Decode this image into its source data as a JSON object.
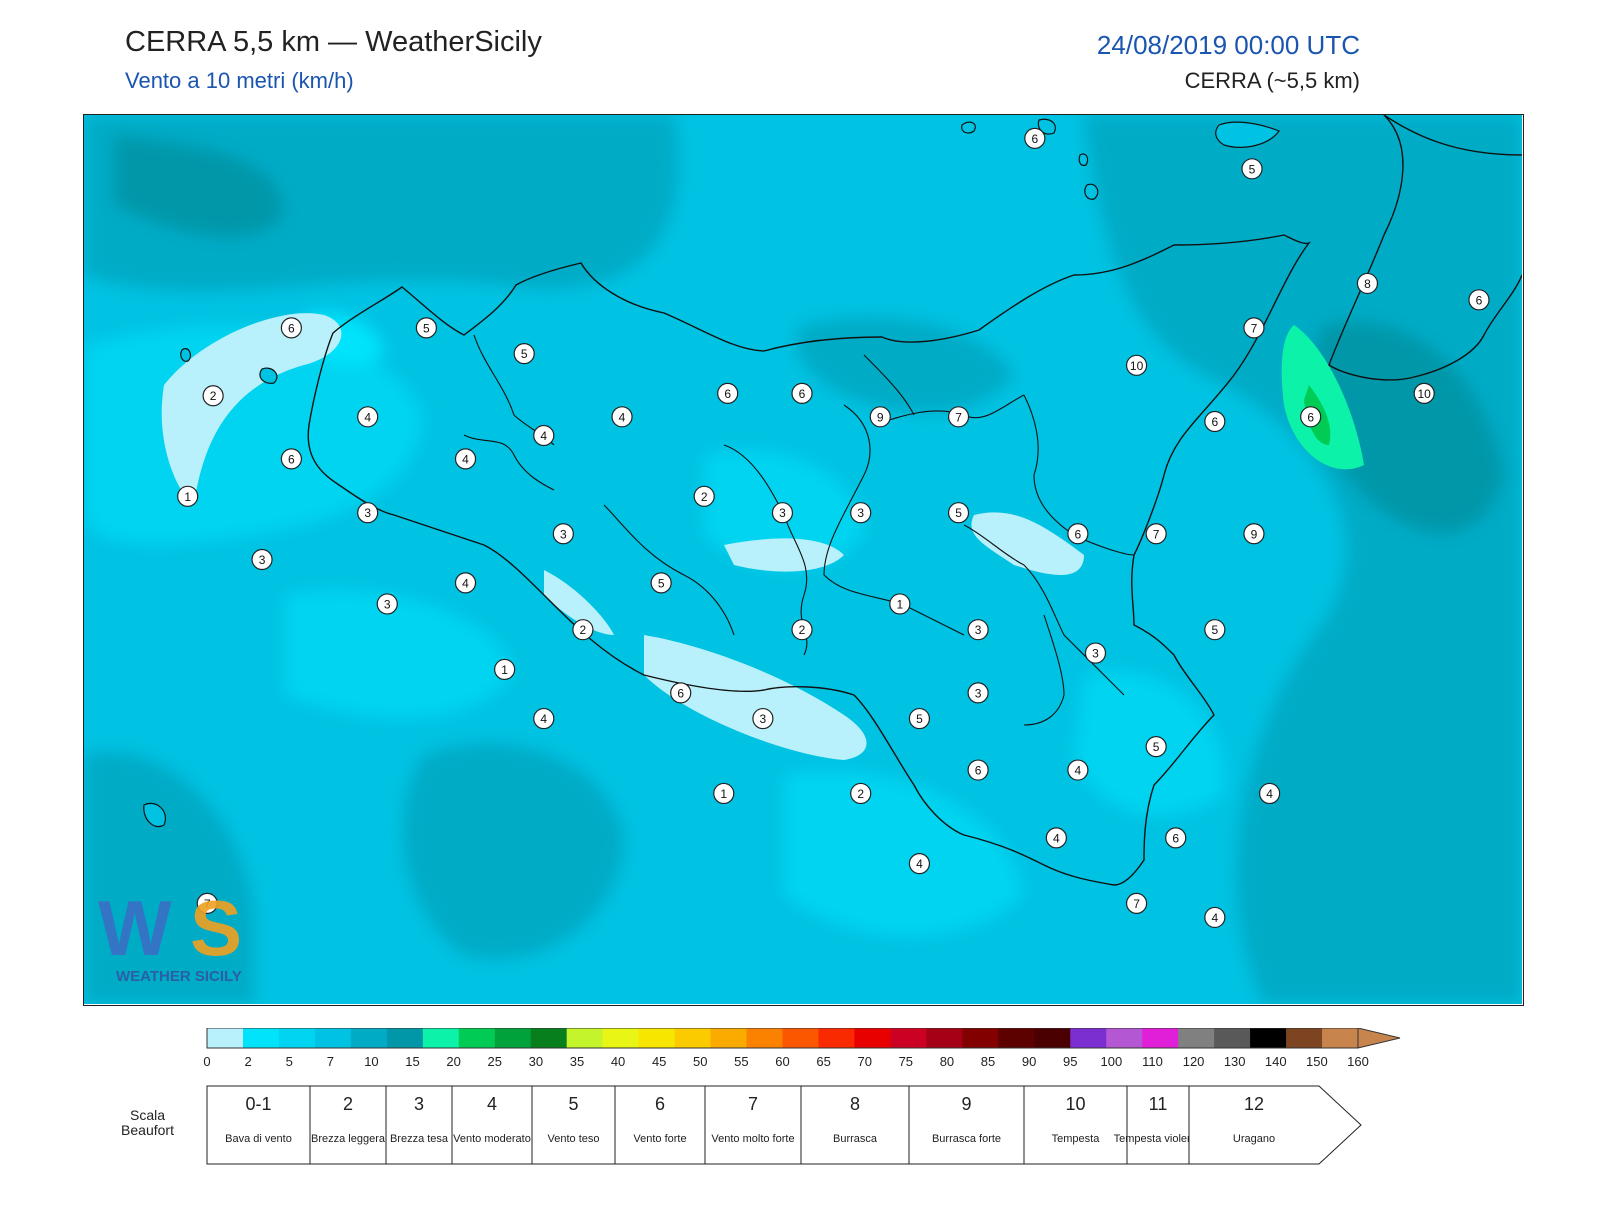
{
  "header": {
    "title": "CERRA 5,5 km — WeatherSicily",
    "subtitle": "Vento a 10 metri (km/h)",
    "datetime": "24/08/2019 00:00 UTC",
    "model": "CERRA (~5,5 km)"
  },
  "logo": {
    "text": "WEATHER SICILY",
    "icon": "ws-logo-icon"
  },
  "colorbar": {
    "ticks": [
      "0",
      "2",
      "5",
      "7",
      "10",
      "15",
      "20",
      "25",
      "30",
      "35",
      "40",
      "45",
      "50",
      "55",
      "60",
      "65",
      "70",
      "75",
      "80",
      "85",
      "90",
      "95",
      "100",
      "110",
      "120",
      "130",
      "140",
      "150",
      "160"
    ],
    "colors": [
      "#b8f0fb",
      "#00e3fb",
      "#00d4f0",
      "#00c2e2",
      "#00abc6",
      "#0097a9",
      "#0cf2a8",
      "#00cc55",
      "#00a23c",
      "#087f1d",
      "#c4f52c",
      "#e9f514",
      "#f7e600",
      "#fbcb00",
      "#fbaa00",
      "#fb8100",
      "#fb5700",
      "#fa2a00",
      "#e80000",
      "#cc0022",
      "#a60016",
      "#820000",
      "#5c0000",
      "#4a0000",
      "#7b2fd0",
      "#b457d2",
      "#e21fd8",
      "#808080",
      "#595959",
      "#000000",
      "#7c4421",
      "#c7844c"
    ]
  },
  "beaufort": {
    "label": "Scala Beaufort",
    "cells": [
      {
        "num": "0-1",
        "desc": "Bava di vento"
      },
      {
        "num": "2",
        "desc": "Brezza leggera"
      },
      {
        "num": "3",
        "desc": "Brezza tesa"
      },
      {
        "num": "4",
        "desc": "Vento moderato"
      },
      {
        "num": "5",
        "desc": "Vento teso"
      },
      {
        "num": "6",
        "desc": "Vento forte"
      },
      {
        "num": "7",
        "desc": "Vento molto forte"
      },
      {
        "num": "8",
        "desc": "Burrasca"
      },
      {
        "num": "9",
        "desc": "Burrasca forte"
      },
      {
        "num": "10",
        "desc": "Tempesta"
      },
      {
        "num": "11",
        "desc": "Tempesta violenta"
      },
      {
        "num": "12",
        "desc": "Uragano"
      }
    ]
  },
  "stations": [
    {
      "v": "6",
      "x": 15.86,
      "y": 38.95
    },
    {
      "v": "5",
      "x": 16.97,
      "y": 38.82
    },
    {
      "v": "8",
      "x": 17.56,
      "y": 38.33
    },
    {
      "v": "6",
      "x": 18.13,
      "y": 38.26
    },
    {
      "v": "7",
      "x": 16.98,
      "y": 38.14
    },
    {
      "v": "10",
      "x": 16.38,
      "y": 37.98
    },
    {
      "v": "10",
      "x": 17.85,
      "y": 37.86
    },
    {
      "v": "6",
      "x": 12.06,
      "y": 38.14
    },
    {
      "v": "5",
      "x": 12.75,
      "y": 38.14
    },
    {
      "v": "5",
      "x": 13.25,
      "y": 38.03
    },
    {
      "v": "6",
      "x": 14.29,
      "y": 37.86
    },
    {
      "v": "6",
      "x": 14.67,
      "y": 37.86
    },
    {
      "v": "9",
      "x": 15.07,
      "y": 37.76
    },
    {
      "v": "7",
      "x": 15.47,
      "y": 37.76
    },
    {
      "v": "6",
      "x": 16.78,
      "y": 37.74
    },
    {
      "v": "6",
      "x": 17.27,
      "y": 37.76
    },
    {
      "v": "2",
      "x": 11.66,
      "y": 37.85
    },
    {
      "v": "4",
      "x": 12.45,
      "y": 37.76
    },
    {
      "v": "4",
      "x": 13.35,
      "y": 37.68
    },
    {
      "v": "4",
      "x": 13.75,
      "y": 37.76
    },
    {
      "v": "6",
      "x": 12.06,
      "y": 37.58
    },
    {
      "v": "4",
      "x": 12.95,
      "y": 37.58
    },
    {
      "v": "2",
      "x": 14.17,
      "y": 37.42
    },
    {
      "v": "3",
      "x": 14.57,
      "y": 37.35
    },
    {
      "v": "3",
      "x": 14.97,
      "y": 37.35
    },
    {
      "v": "5",
      "x": 15.47,
      "y": 37.35
    },
    {
      "v": "1",
      "x": 11.53,
      "y": 37.42
    },
    {
      "v": "3",
      "x": 12.45,
      "y": 37.35
    },
    {
      "v": "3",
      "x": 13.45,
      "y": 37.26
    },
    {
      "v": "6",
      "x": 16.08,
      "y": 37.26
    },
    {
      "v": "7",
      "x": 16.48,
      "y": 37.26
    },
    {
      "v": "9",
      "x": 16.98,
      "y": 37.26
    },
    {
      "v": "3",
      "x": 11.91,
      "y": 37.15
    },
    {
      "v": "4",
      "x": 12.95,
      "y": 37.05
    },
    {
      "v": "5",
      "x": 13.95,
      "y": 37.05
    },
    {
      "v": "3",
      "x": 12.55,
      "y": 36.96
    },
    {
      "v": "1",
      "x": 15.17,
      "y": 36.96
    },
    {
      "v": "2",
      "x": 13.55,
      "y": 36.85
    },
    {
      "v": "2",
      "x": 14.67,
      "y": 36.85
    },
    {
      "v": "3",
      "x": 15.57,
      "y": 36.85
    },
    {
      "v": "5",
      "x": 16.78,
      "y": 36.85
    },
    {
      "v": "3",
      "x": 16.17,
      "y": 36.75
    },
    {
      "v": "1",
      "x": 13.15,
      "y": 36.68
    },
    {
      "v": "6",
      "x": 14.05,
      "y": 36.58
    },
    {
      "v": "3",
      "x": 15.57,
      "y": 36.58
    },
    {
      "v": "4",
      "x": 13.35,
      "y": 36.47
    },
    {
      "v": "3",
      "x": 14.47,
      "y": 36.47
    },
    {
      "v": "5",
      "x": 15.27,
      "y": 36.47
    },
    {
      "v": "5",
      "x": 16.48,
      "y": 36.35
    },
    {
      "v": "6",
      "x": 15.57,
      "y": 36.25
    },
    {
      "v": "4",
      "x": 16.08,
      "y": 36.25
    },
    {
      "v": "4",
      "x": 17.06,
      "y": 36.15
    },
    {
      "v": "1",
      "x": 14.27,
      "y": 36.15
    },
    {
      "v": "2",
      "x": 14.97,
      "y": 36.15
    },
    {
      "v": "4",
      "x": 15.97,
      "y": 35.96
    },
    {
      "v": "6",
      "x": 16.58,
      "y": 35.96
    },
    {
      "v": "4",
      "x": 15.27,
      "y": 35.85
    },
    {
      "v": "7",
      "x": 11.63,
      "y": 35.68
    },
    {
      "v": "7",
      "x": 16.38,
      "y": 35.68
    },
    {
      "v": "4",
      "x": 16.78,
      "y": 35.62
    }
  ]
}
